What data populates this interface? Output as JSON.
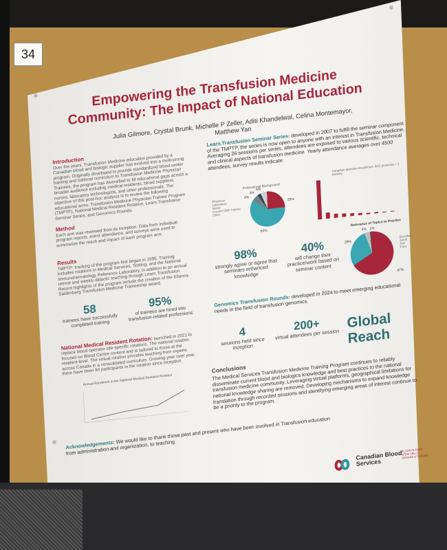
{
  "board_number": "34",
  "poster": {
    "title": "Empowering the Transfusion Medicine Community: The Impact of National Education",
    "authors": "Julia Gilmore, Crystal Brunk, Michelle P Zeller, Aditi Khandelwal, Celina Montemayor, Matthew Yan",
    "intro_heading": "Introduction",
    "intro_text": "Over the years, Transfusion Medicine education provided by a Canadian blood and biologic supplier has evolved into a multi-prong program. Originally developed to provide standardized blood center training and national curriculum to Transfusion Medicine Physician Trainees, the program has diversified to fill educational gaps across a broader audience including medical residents, blood suppliers, nurses, laboratory technologists, and other professionals. The objective of this post-hoc analysis is to review the following educational arms: Transfusion Medicine Physician Trainee Program (TMPTP), National Medical Resident Rotation, Learn.Transfusion Seminar Series, and Genomics Rounds.",
    "method_heading": "Method",
    "method_text": "Each arm was reviewed from its inception. Data from individual program reports, event attendance, and surveys were used to summarize the reach and impact of each program arm.",
    "results_heading": "Results",
    "results_text": "TMPTP: tracking of the program first began in 1995. Training includes rotations in Medical Services, Testing, and the National Immunohematology Reference Laboratory, in addition to an annual retreat and weekly didactic teaching through Learn.Transfusion. Recent highlights of the program include the creation of the Elianna Saidenberg Transfusion Medicine Traineeship award.",
    "stat_58": "58",
    "stat_58_label": "trainees have successfully completed training",
    "stat_95": "95%",
    "stat_95_label": "of trainees are hired into transfusion-related professions",
    "rotation_heading": "National Medical Resident Rotation:",
    "rotation_text": "launched in 2021 to replace blood operator site-specific rotations. The national rotation focuses on Blood Centre content and is tailored to those at the resident-level. The virtual rotation provides teaching from experts across Canada in a consolidated curriculum. Growing year over year, there have been 84 participants in the rotation since inception.",
    "rotation_chart_title": "Annual Enrolment in the National Medical Resident Rotation",
    "seminar_heading": "Learn.Transfusion Seminar Series:",
    "seminar_text": "developed in 2007 to fulfill the seminar component of the TMPTP, the series is now open to anyone with an interest in Transfusion Medicine. Averaging 26 sessions per series, attendees are exposed to various scientific, technical and clinical aspects of transfusion medicine. Yearly attendance averages over 4500 attendees, survey results indicate:",
    "prof_bg_title": "Professional Background",
    "prof_bg_legend": [
      "Physician",
      "Laboratory",
      "Nurse",
      "Current CBS Trainee",
      "Other"
    ],
    "prof_bg_labels": [
      "25%",
      "60%",
      "6%",
      "3%",
      "6%"
    ],
    "province_title": "Canadian attendee breakdown: 9/12 provinces + 1 territory",
    "province_labels": [
      "64%",
      "10%",
      "7%",
      "6%",
      "4%",
      "3%",
      "2%",
      "2%",
      "1%",
      "1%"
    ],
    "stat_98": "98%",
    "stat_98_label": "strongly agree or agree that seminars enhanced knowledge",
    "stat_40": "40%",
    "stat_40_label": "will change their practice/work based on seminar content",
    "relevance_title": "Relevance of Topics to Practice",
    "relevance_legend": [
      "Excellent",
      "Good",
      "Fair",
      "Poor"
    ],
    "relevance_labels": [
      "67%",
      "28%",
      "4%",
      "1%"
    ],
    "genomics_heading": "Genomics Transfusion Rounds:",
    "genomics_text": "developed in 2024 to meet emerging educational needs in the field of transfusion genomics.",
    "stat_4": "4",
    "stat_4_label": "sessions held since inception",
    "stat_200": "200+",
    "stat_200_label": "virtual attendees per session",
    "global_reach": "Global Reach",
    "conclusions_heading": "Conclusions",
    "conclusions_text": "The Medical Services Transfusion Medicine Training Program continues to reliably disseminate current blood and biologics knowledge and best practices to the national transfusion medicine community. Leveraging virtual platforms, geographical limitations for national knowledge sharing are removed. Developing mechanisms to expand knowledge translation through recorded sessions and identifying emerging areas of interest continue to be a priority to the program.",
    "ack_heading": "Acknowledgements:",
    "ack_text": "We would like to thank those past and present who have been involved in Transfusion education from administration and organization, to teaching.",
    "logo_name": "Canadian Blood Services",
    "logo_tagline": "BLOOD PLASMA STEM CELLS ORGANS & TISSUES"
  },
  "chart_data": [
    {
      "type": "pie",
      "title": "Professional Background",
      "labels": [
        "Physician",
        "Laboratory",
        "Nurse",
        "Current CBS Trainee",
        "Other"
      ],
      "values": [
        25,
        60,
        6,
        3,
        6
      ],
      "colors": [
        "#a8263a",
        "#3aa6b2",
        "#7d7d7d",
        "#1f4b5a",
        "#cfcfcf"
      ]
    },
    {
      "type": "bar",
      "title": "Canadian attendee breakdown: 9/12 provinces + 1 territory",
      "values": [
        64,
        10,
        7,
        6,
        4,
        3,
        2,
        2,
        1,
        1
      ],
      "colors": [
        "#a8263a"
      ]
    },
    {
      "type": "pie",
      "title": "Relevance of Topics to Practice",
      "labels": [
        "Excellent",
        "Good",
        "Fair",
        "Poor"
      ],
      "values": [
        67,
        28,
        4,
        1
      ],
      "colors": [
        "#a8263a",
        "#3aa6b2",
        "#bdbdbd",
        "#555555"
      ]
    }
  ]
}
